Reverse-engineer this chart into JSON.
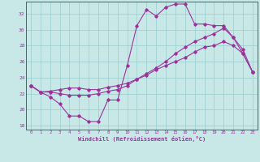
{
  "xlabel": "Windchill (Refroidissement éolien,°C)",
  "xlim": [
    -0.5,
    23.5
  ],
  "ylim": [
    17.5,
    33.5
  ],
  "yticks": [
    18,
    20,
    22,
    24,
    26,
    28,
    30,
    32
  ],
  "xticks": [
    0,
    1,
    2,
    3,
    4,
    5,
    6,
    7,
    8,
    9,
    10,
    11,
    12,
    13,
    14,
    15,
    16,
    17,
    18,
    19,
    20,
    21,
    22,
    23
  ],
  "bg_color": "#c8e8e8",
  "line_color": "#993399",
  "grid_color": "#99cccc",
  "line1_x": [
    0,
    1,
    2,
    3,
    4,
    5,
    6,
    7,
    8,
    9,
    10,
    11,
    12,
    13,
    14,
    15,
    16,
    17,
    18,
    19,
    20,
    21,
    22,
    23
  ],
  "line1_y": [
    23.0,
    22.2,
    21.6,
    20.7,
    19.2,
    19.2,
    18.5,
    18.5,
    21.2,
    21.2,
    25.5,
    30.5,
    32.5,
    31.7,
    32.8,
    33.2,
    33.2,
    30.7,
    30.7,
    30.5,
    30.5,
    29.0,
    27.0,
    24.7
  ],
  "line2_x": [
    0,
    1,
    2,
    3,
    4,
    5,
    6,
    7,
    8,
    9,
    10,
    11,
    12,
    13,
    14,
    15,
    16,
    17,
    18,
    19,
    20,
    21,
    22,
    23
  ],
  "line2_y": [
    23.0,
    22.2,
    22.2,
    22.0,
    21.8,
    21.8,
    21.8,
    22.0,
    22.3,
    22.5,
    23.0,
    23.8,
    24.5,
    25.2,
    26.0,
    27.0,
    27.8,
    28.5,
    29.0,
    29.5,
    30.2,
    29.0,
    27.5,
    24.7
  ],
  "line3_x": [
    0,
    1,
    2,
    3,
    4,
    5,
    6,
    7,
    8,
    9,
    10,
    11,
    12,
    13,
    14,
    15,
    16,
    17,
    18,
    19,
    20,
    21,
    22,
    23
  ],
  "line3_y": [
    23.0,
    22.2,
    22.3,
    22.5,
    22.7,
    22.7,
    22.5,
    22.5,
    22.8,
    23.0,
    23.3,
    23.8,
    24.3,
    25.0,
    25.5,
    26.0,
    26.5,
    27.2,
    27.8,
    28.0,
    28.5,
    28.0,
    27.0,
    24.7
  ]
}
